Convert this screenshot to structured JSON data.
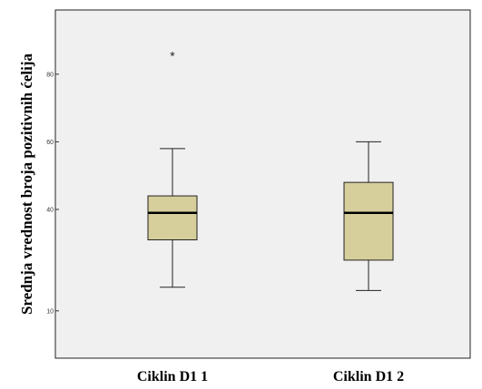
{
  "chart_data": {
    "type": "boxplot",
    "title": "",
    "xlabel": "",
    "ylabel": "Srednja vrednost broja pozitivnih ćelija",
    "ylim": [
      -4,
      99
    ],
    "yticks": [
      10,
      40,
      60,
      80
    ],
    "ytick_labels": [
      "10",
      "40",
      "60",
      "80"
    ],
    "grid": false,
    "categories": [
      "Ciklin D1 1",
      "Ciklin D1 2"
    ],
    "boxes": [
      {
        "category": "Ciklin D1 1",
        "min": 17,
        "q1": 31,
        "median": 39,
        "q3": 44,
        "max": 58,
        "outliers": [
          86
        ]
      },
      {
        "category": "Ciklin D1 2",
        "min": 16,
        "q1": 25,
        "median": 39,
        "q3": 48,
        "max": 60,
        "outliers": []
      }
    ],
    "colors": {
      "box_fill": "#d6cf9c",
      "plot_bg": "#f0f0f0",
      "stroke": "#222222"
    },
    "outlier_marker": "*"
  }
}
